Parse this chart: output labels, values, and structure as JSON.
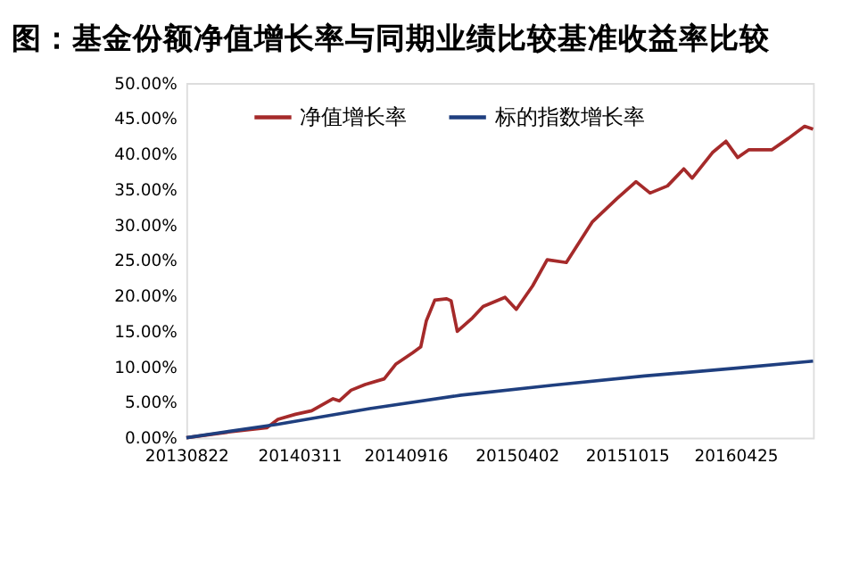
{
  "chart_data": {
    "type": "line",
    "title": "图：基金份额净值增长率与同期业绩比较基准收益率比较",
    "xlim": [
      "2013-08-22",
      "2016-09-10"
    ],
    "xticks": [
      {
        "value": "2013-08-22",
        "label": "20130822"
      },
      {
        "value": "2014-03-11",
        "label": "20140311"
      },
      {
        "value": "2014-09-16",
        "label": "20140916"
      },
      {
        "value": "2015-04-02",
        "label": "20150402"
      },
      {
        "value": "2015-10-15",
        "label": "20151015"
      },
      {
        "value": "2016-04-25",
        "label": "20160425"
      }
    ],
    "ylim": [
      0,
      50
    ],
    "yticks": [
      {
        "value": 0,
        "label": "0.00%"
      },
      {
        "value": 5,
        "label": "5.00%"
      },
      {
        "value": 10,
        "label": "10.00%"
      },
      {
        "value": 15,
        "label": "15.00%"
      },
      {
        "value": 20,
        "label": "20.00%"
      },
      {
        "value": 25,
        "label": "25.00%"
      },
      {
        "value": 30,
        "label": "30.00%"
      },
      {
        "value": 35,
        "label": "35.00%"
      },
      {
        "value": 40,
        "label": "40.00%"
      },
      {
        "value": 45,
        "label": "45.00%"
      },
      {
        "value": 50,
        "label": "50.00%"
      }
    ],
    "grid": false,
    "legend": "top",
    "marker": "none",
    "line_style": "solid",
    "series": [
      {
        "name": "净值增长率",
        "color": "#a52a2a",
        "x": [
          "2013-08-22",
          "2013-11-05",
          "2014-01-12",
          "2014-02-01",
          "2014-03-04",
          "2014-04-02",
          "2014-05-10",
          "2014-05-21",
          "2014-06-11",
          "2014-07-06",
          "2014-08-09",
          "2014-08-30",
          "2014-09-29",
          "2014-10-13",
          "2014-10-23",
          "2014-11-07",
          "2014-11-28",
          "2014-12-06",
          "2014-12-17",
          "2015-01-13",
          "2015-02-01",
          "2015-03-12",
          "2015-04-01",
          "2015-04-30",
          "2015-05-26",
          "2015-06-29",
          "2015-08-14",
          "2015-09-27",
          "2015-10-31",
          "2015-11-25",
          "2015-12-26",
          "2016-01-24",
          "2016-02-08",
          "2016-03-15",
          "2016-04-08",
          "2016-04-29",
          "2016-05-19",
          "2016-06-29",
          "2016-07-28",
          "2016-08-26",
          "2016-09-10"
        ],
        "values": [
          0,
          0.8,
          1.4,
          2.6,
          3.3,
          3.8,
          5.5,
          5.2,
          6.7,
          7.5,
          8.3,
          10.4,
          12.0,
          12.8,
          16.5,
          19.4,
          19.6,
          19.3,
          15.0,
          16.9,
          18.5,
          19.8,
          18.1,
          21.4,
          25.1,
          24.7,
          30.4,
          33.7,
          36.1,
          34.5,
          35.5,
          37.9,
          36.6,
          40.2,
          41.8,
          39.5,
          40.6,
          40.6,
          42.2,
          43.9,
          43.5
        ]
      },
      {
        "name": "标的指数增长率",
        "color": "#1f3f7f",
        "x": [
          "2013-08-22",
          "2014-02-01",
          "2014-07-14",
          "2014-12-24",
          "2015-06-05",
          "2015-11-15",
          "2016-04-26",
          "2016-09-10"
        ],
        "values": [
          0,
          1.9,
          4.1,
          6.0,
          7.4,
          8.7,
          9.8,
          10.8
        ]
      }
    ]
  }
}
